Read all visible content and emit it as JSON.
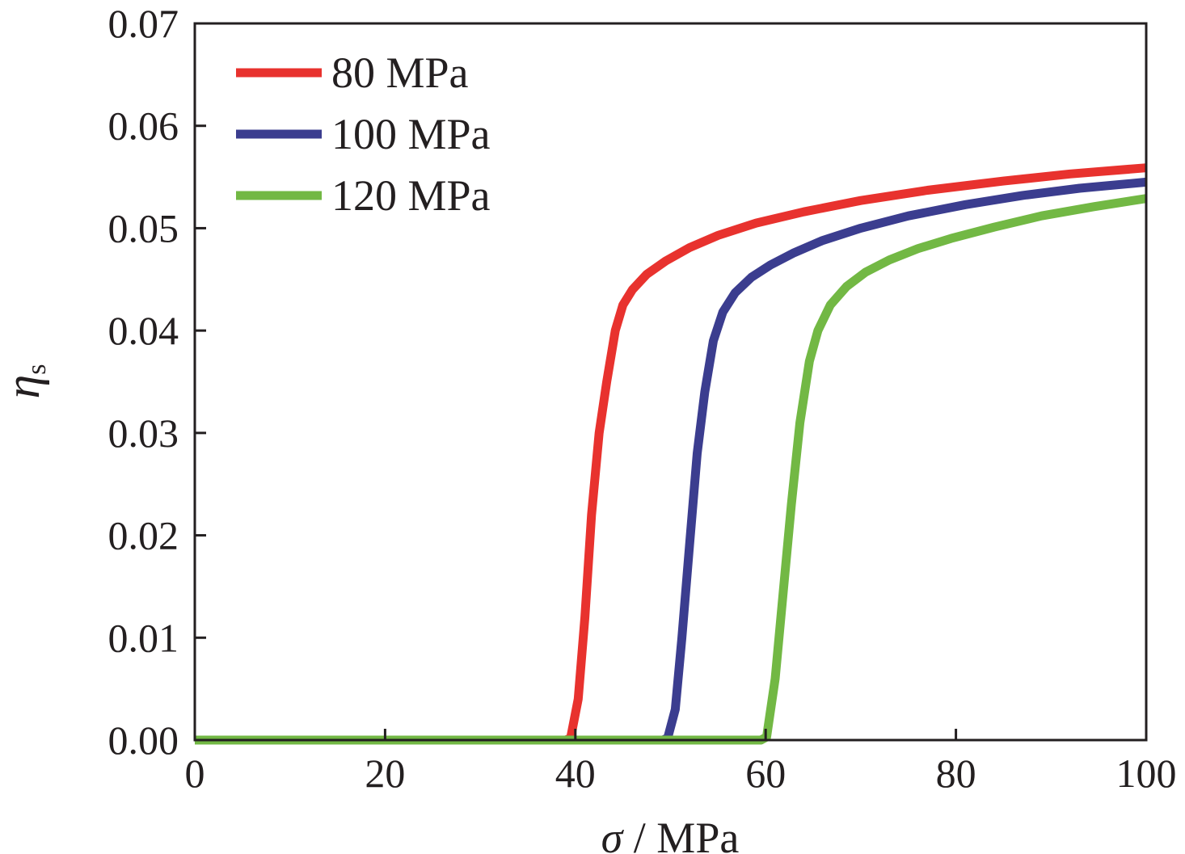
{
  "chart_data": {
    "type": "line",
    "xlabel_symbol": "σ",
    "xlabel_rest": " / MPa",
    "ylabel_symbol": "η",
    "ylabel_subscript": "s",
    "xlim": [
      0,
      100
    ],
    "ylim": [
      0,
      0.07
    ],
    "x_ticks": [
      "0",
      "20",
      "40",
      "60",
      "80",
      "100"
    ],
    "y_ticks": [
      "0.00",
      "0.01",
      "0.02",
      "0.03",
      "0.04",
      "0.05",
      "0.06",
      "0.07"
    ],
    "x_tick_values": [
      0,
      20,
      40,
      60,
      80,
      100
    ],
    "y_tick_values": [
      0,
      0.01,
      0.02,
      0.03,
      0.04,
      0.05,
      0.06,
      0.07
    ],
    "legend_position": "top-left",
    "grid": false,
    "series": [
      {
        "name": "80 MPa",
        "color": "#e8322e",
        "points": [
          [
            0,
            0
          ],
          [
            39,
            0
          ],
          [
            39.5,
            0.0002
          ],
          [
            40.3,
            0.004
          ],
          [
            41,
            0.012
          ],
          [
            41.7,
            0.022
          ],
          [
            42.5,
            0.03
          ],
          [
            43.3,
            0.035
          ],
          [
            44.2,
            0.04
          ],
          [
            45,
            0.0425
          ],
          [
            46,
            0.044
          ],
          [
            47.5,
            0.0455
          ],
          [
            49.5,
            0.0468
          ],
          [
            52,
            0.0481
          ],
          [
            55,
            0.0493
          ],
          [
            59,
            0.0505
          ],
          [
            64,
            0.0516
          ],
          [
            70,
            0.0527
          ],
          [
            77,
            0.0537
          ],
          [
            85,
            0.0546
          ],
          [
            92,
            0.0553
          ],
          [
            100,
            0.0559
          ]
        ]
      },
      {
        "name": "100 MPa",
        "color": "#3b3d8f",
        "points": [
          [
            0,
            0
          ],
          [
            49.2,
            0
          ],
          [
            49.7,
            0.0002
          ],
          [
            50.5,
            0.003
          ],
          [
            51.2,
            0.01
          ],
          [
            52,
            0.019
          ],
          [
            52.8,
            0.028
          ],
          [
            53.6,
            0.034
          ],
          [
            54.5,
            0.039
          ],
          [
            55.5,
            0.0418
          ],
          [
            56.8,
            0.0437
          ],
          [
            58.5,
            0.0452
          ],
          [
            60.5,
            0.0464
          ],
          [
            63,
            0.0476
          ],
          [
            66,
            0.0488
          ],
          [
            70,
            0.05
          ],
          [
            75,
            0.0512
          ],
          [
            81,
            0.0523
          ],
          [
            87,
            0.0532
          ],
          [
            93,
            0.0539
          ],
          [
            100,
            0.0545
          ]
        ]
      },
      {
        "name": "120 MPa",
        "color": "#72b844",
        "points": [
          [
            0,
            0
          ],
          [
            59.5,
            0
          ],
          [
            60.1,
            0.0003
          ],
          [
            61,
            0.006
          ],
          [
            61.8,
            0.014
          ],
          [
            62.7,
            0.023
          ],
          [
            63.6,
            0.031
          ],
          [
            64.6,
            0.037
          ],
          [
            65.5,
            0.04
          ],
          [
            66.8,
            0.0425
          ],
          [
            68.5,
            0.0443
          ],
          [
            70.5,
            0.0457
          ],
          [
            73,
            0.0469
          ],
          [
            76,
            0.048
          ],
          [
            79.5,
            0.049
          ],
          [
            84,
            0.0501
          ],
          [
            89,
            0.0512
          ],
          [
            94.5,
            0.0521
          ],
          [
            100,
            0.0529
          ]
        ]
      }
    ]
  }
}
